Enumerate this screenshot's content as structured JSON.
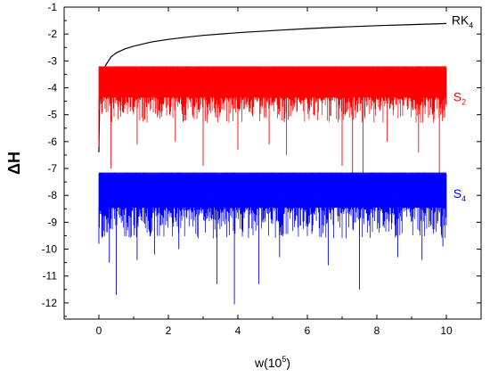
{
  "chart_data": {
    "type": "line",
    "xlabel": "w(10",
    "xlabel_sup": "5",
    "xlabel_close": ")",
    "ylabel": "ΔH",
    "xlim": [
      -1,
      11
    ],
    "ylim": [
      -12.6,
      -1
    ],
    "xticks": [
      {
        "value": 0,
        "label": "0"
      },
      {
        "value": 2,
        "label": "2"
      },
      {
        "value": 4,
        "label": "4"
      },
      {
        "value": 6,
        "label": "6"
      },
      {
        "value": 8,
        "label": "8"
      },
      {
        "value": 10,
        "label": "10"
      }
    ],
    "yticks": [
      {
        "value": -1,
        "label": "-1"
      },
      {
        "value": -2,
        "label": "-2"
      },
      {
        "value": -3,
        "label": "-3"
      },
      {
        "value": -4,
        "label": "-4"
      },
      {
        "value": -5,
        "label": "-5"
      },
      {
        "value": -6,
        "label": "-6"
      },
      {
        "value": -7,
        "label": "-7"
      },
      {
        "value": -8,
        "label": "-8"
      },
      {
        "value": -9,
        "label": "-9"
      },
      {
        "value": -10,
        "label": "-10"
      },
      {
        "value": -11,
        "label": "-11"
      },
      {
        "value": -12,
        "label": "-12"
      }
    ],
    "series": [
      {
        "name": "RK",
        "subscript": "4",
        "color": "#000000",
        "label_at": [
          10.15,
          -1.65
        ],
        "x": [
          0.0,
          0.02,
          0.05,
          0.1,
          0.2,
          0.35,
          0.5,
          0.75,
          1.0,
          1.5,
          2.0,
          2.5,
          3.0,
          4.0,
          5.0,
          6.0,
          7.0,
          8.0,
          9.0,
          10.0
        ],
        "y": [
          -6.4,
          -4.6,
          -4.0,
          -3.55,
          -3.15,
          -2.85,
          -2.7,
          -2.55,
          -2.45,
          -2.3,
          -2.2,
          -2.12,
          -2.05,
          -1.95,
          -1.87,
          -1.8,
          -1.74,
          -1.69,
          -1.65,
          -1.61
        ]
      },
      {
        "name": "S",
        "subscript": "2",
        "color": "#ff0000",
        "label_at": [
          10.2,
          -4.5
        ],
        "x_range": [
          0,
          10
        ],
        "band_top": -3.2,
        "band_bottom": -4.35,
        "typical_min": -5.3,
        "deep_spikes": [
          {
            "x": 0.0,
            "y": -6.2
          },
          {
            "x": 0.35,
            "y": -7.0
          },
          {
            "x": 1.1,
            "y": -6.1
          },
          {
            "x": 2.2,
            "y": -6.0
          },
          {
            "x": 3.0,
            "y": -6.9
          },
          {
            "x": 4.0,
            "y": -6.3
          },
          {
            "x": 4.9,
            "y": -6.1
          },
          {
            "x": 5.4,
            "y": -6.5
          },
          {
            "x": 7.0,
            "y": -6.9
          },
          {
            "x": 7.3,
            "y": -7.6
          },
          {
            "x": 7.6,
            "y": -7.6
          },
          {
            "x": 8.3,
            "y": -6.0
          },
          {
            "x": 9.2,
            "y": -6.4
          },
          {
            "x": 9.8,
            "y": -7.6
          }
        ]
      },
      {
        "name": "S",
        "subscript": "4",
        "color": "#0000ff",
        "label_at": [
          10.2,
          -8.1
        ],
        "x_range": [
          0,
          10
        ],
        "band_top": -7.15,
        "band_bottom": -8.45,
        "typical_min": -9.6,
        "deep_spikes": [
          {
            "x": 0.0,
            "y": -9.8
          },
          {
            "x": 0.3,
            "y": -10.5
          },
          {
            "x": 0.5,
            "y": -11.7
          },
          {
            "x": 1.1,
            "y": -10.4
          },
          {
            "x": 1.6,
            "y": -10.2
          },
          {
            "x": 2.3,
            "y": -10.0
          },
          {
            "x": 3.4,
            "y": -11.3
          },
          {
            "x": 3.9,
            "y": -12.05
          },
          {
            "x": 4.6,
            "y": -11.3
          },
          {
            "x": 5.2,
            "y": -10.3
          },
          {
            "x": 6.6,
            "y": -10.6
          },
          {
            "x": 7.5,
            "y": -11.5
          },
          {
            "x": 8.6,
            "y": -10.3
          },
          {
            "x": 9.3,
            "y": -10.4
          },
          {
            "x": 9.9,
            "y": -9.9
          }
        ]
      }
    ]
  }
}
